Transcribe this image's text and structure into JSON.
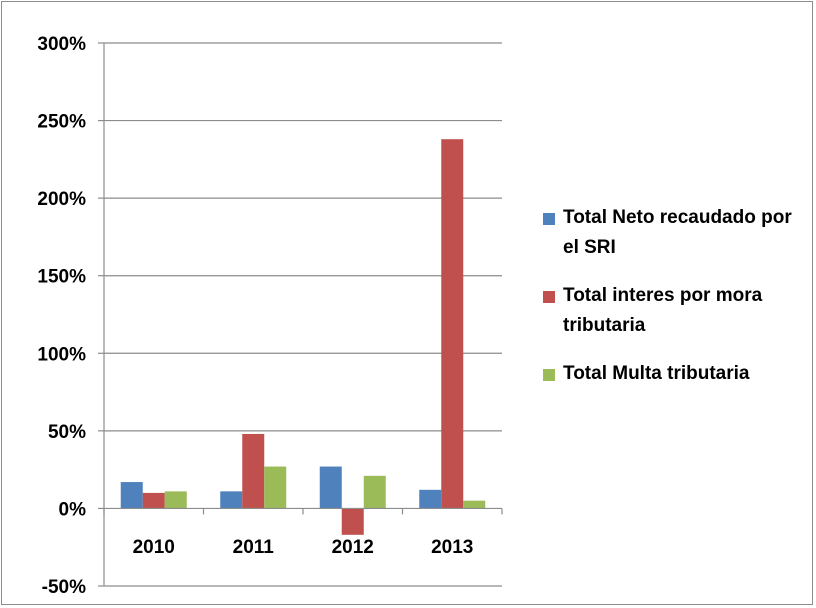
{
  "chart_data": {
    "type": "bar",
    "categories": [
      "2010",
      "2011",
      "2012",
      "2013"
    ],
    "series": [
      {
        "name": "Total Neto recaudado por el SRI",
        "color": "#4f81bd",
        "values": [
          17,
          11,
          27,
          12
        ]
      },
      {
        "name": "Total interes por mora tributaria",
        "color": "#c0504d",
        "values": [
          10,
          48,
          -17,
          238
        ]
      },
      {
        "name": "Total Multa tributaria",
        "color": "#9bbb59",
        "values": [
          11,
          27,
          21,
          5
        ]
      }
    ],
    "y_ticks": [
      "300%",
      "250%",
      "200%",
      "150%",
      "100%",
      "50%",
      "0%",
      "-50%"
    ],
    "ylim": [
      -50,
      300
    ],
    "grid": true,
    "legend_position": "right"
  }
}
